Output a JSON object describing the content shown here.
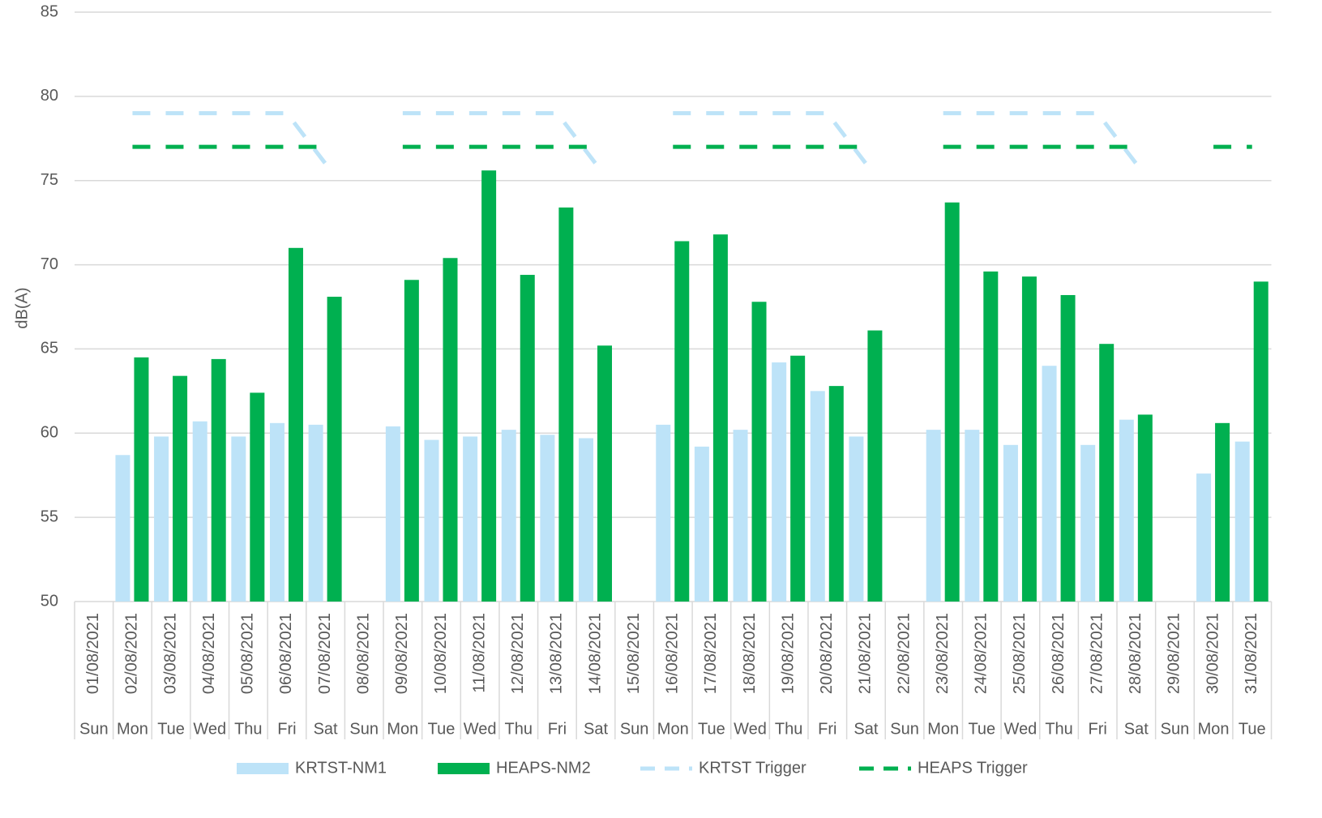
{
  "chart_data": {
    "type": "bar",
    "y_label": "dB(A)",
    "categories": [
      "01/08/2021",
      "02/08/2021",
      "03/08/2021",
      "04/08/2021",
      "05/08/2021",
      "06/08/2021",
      "07/08/2021",
      "08/08/2021",
      "09/08/2021",
      "10/08/2021",
      "11/08/2021",
      "12/08/2021",
      "13/08/2021",
      "14/08/2021",
      "15/08/2021",
      "16/08/2021",
      "17/08/2021",
      "18/08/2021",
      "19/08/2021",
      "20/08/2021",
      "21/08/2021",
      "22/08/2021",
      "23/08/2021",
      "24/08/2021",
      "25/08/2021",
      "26/08/2021",
      "27/08/2021",
      "28/08/2021",
      "29/08/2021",
      "30/08/2021",
      "31/08/2021"
    ],
    "weekdays": [
      "Sun",
      "Mon",
      "Tue",
      "Wed",
      "Thu",
      "Fri",
      "Sat",
      "Sun",
      "Mon",
      "Tue",
      "Wed",
      "Thu",
      "Fri",
      "Sat",
      "Sun",
      "Mon",
      "Tue",
      "Wed",
      "Thu",
      "Fri",
      "Sat",
      "Sun",
      "Mon",
      "Tue",
      "Wed",
      "Thu",
      "Fri",
      "Sat",
      "Sun",
      "Mon",
      "Tue"
    ],
    "series": [
      {
        "name": "KRTST-NM1",
        "kind": "bar",
        "color": "#bde3f8",
        "values": [
          null,
          58.7,
          59.8,
          60.7,
          59.8,
          60.6,
          60.5,
          null,
          60.4,
          59.6,
          59.8,
          60.2,
          59.9,
          59.7,
          null,
          60.5,
          59.2,
          60.2,
          64.2,
          62.5,
          59.8,
          null,
          60.2,
          60.2,
          59.3,
          64.0,
          59.3,
          60.8,
          null,
          57.6,
          59.5
        ]
      },
      {
        "name": "HEAPS-NM2",
        "kind": "bar",
        "color": "#00b050",
        "values": [
          null,
          64.5,
          63.4,
          64.4,
          62.4,
          71.0,
          68.1,
          null,
          69.1,
          70.4,
          75.6,
          69.4,
          73.4,
          65.2,
          null,
          71.4,
          71.8,
          67.8,
          64.6,
          62.8,
          66.1,
          null,
          73.7,
          69.6,
          69.3,
          68.2,
          65.3,
          61.1,
          null,
          60.6,
          69.0
        ]
      },
      {
        "name": "KRTST Trigger",
        "kind": "line",
        "color": "#bde3f8",
        "values": [
          null,
          79,
          79,
          79,
          79,
          79,
          76,
          null,
          79,
          79,
          79,
          79,
          79,
          76,
          null,
          79,
          79,
          79,
          79,
          79,
          76,
          null,
          79,
          79,
          79,
          79,
          79,
          76,
          null,
          null,
          null
        ]
      },
      {
        "name": "HEAPS Trigger",
        "kind": "line",
        "color": "#00b050",
        "values": [
          null,
          77,
          77,
          77,
          77,
          77,
          77,
          null,
          77,
          77,
          77,
          77,
          77,
          77,
          null,
          77,
          77,
          77,
          77,
          77,
          77,
          null,
          77,
          77,
          77,
          77,
          77,
          77,
          null,
          77,
          77
        ]
      }
    ],
    "ylim": [
      50,
      85
    ],
    "yticks": [
      50,
      55,
      60,
      65,
      70,
      75,
      80,
      85
    ],
    "grid": true,
    "legend": "bottom"
  }
}
